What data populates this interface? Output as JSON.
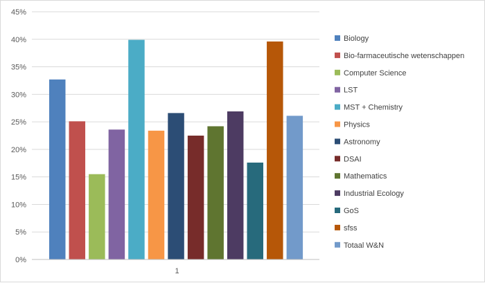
{
  "chart_data": {
    "type": "bar",
    "title": "",
    "xlabel": "",
    "ylabel": "",
    "categories": [
      "1"
    ],
    "ylim": [
      0,
      0.45
    ],
    "y_ticks": [
      "0%",
      "5%",
      "10%",
      "15%",
      "20%",
      "25%",
      "30%",
      "35%",
      "40%",
      "45%"
    ],
    "grid": true,
    "legend_position": "right",
    "series": [
      {
        "name": "Biology",
        "values": [
          0.327
        ],
        "color": "#4f81bd"
      },
      {
        "name": "Bio-farmaceutische wetenschappen",
        "values": [
          0.251
        ],
        "color": "#c0504d"
      },
      {
        "name": "Computer Science",
        "values": [
          0.155
        ],
        "color": "#9bbb59"
      },
      {
        "name": "LST",
        "values": [
          0.236
        ],
        "color": "#8064a2"
      },
      {
        "name": "MST + Chemistry",
        "values": [
          0.399
        ],
        "color": "#4bacc6"
      },
      {
        "name": "Physics",
        "values": [
          0.234
        ],
        "color": "#f79646"
      },
      {
        "name": "Astronomy",
        "values": [
          0.266
        ],
        "color": "#2c4d75"
      },
      {
        "name": "DSAI",
        "values": [
          0.225
        ],
        "color": "#772c2a"
      },
      {
        "name": "Mathematics",
        "values": [
          0.242
        ],
        "color": "#5f7530"
      },
      {
        "name": "Industrial Ecology",
        "values": [
          0.269
        ],
        "color": "#4d3b62"
      },
      {
        "name": "GoS",
        "values": [
          0.176
        ],
        "color": "#276a7c"
      },
      {
        "name": "sfss",
        "values": [
          0.396
        ],
        "color": "#b65708"
      },
      {
        "name": "Totaal W&N",
        "values": [
          0.261
        ],
        "color": "#729aca"
      }
    ]
  }
}
